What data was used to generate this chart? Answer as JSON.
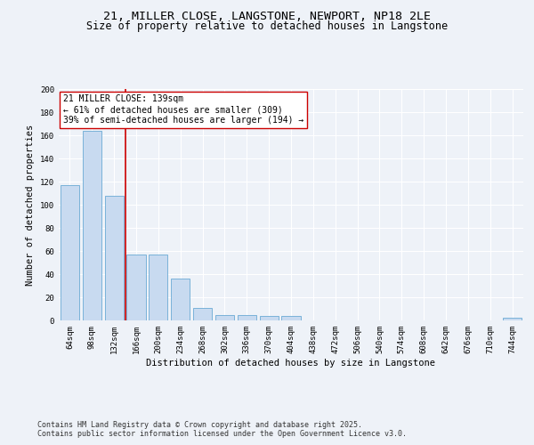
{
  "title_line1": "21, MILLER CLOSE, LANGSTONE, NEWPORT, NP18 2LE",
  "title_line2": "Size of property relative to detached houses in Langstone",
  "xlabel": "Distribution of detached houses by size in Langstone",
  "ylabel": "Number of detached properties",
  "categories": [
    "64sqm",
    "98sqm",
    "132sqm",
    "166sqm",
    "200sqm",
    "234sqm",
    "268sqm",
    "302sqm",
    "336sqm",
    "370sqm",
    "404sqm",
    "438sqm",
    "472sqm",
    "506sqm",
    "540sqm",
    "574sqm",
    "608sqm",
    "642sqm",
    "676sqm",
    "710sqm",
    "744sqm"
  ],
  "values": [
    117,
    164,
    108,
    57,
    57,
    36,
    11,
    5,
    5,
    4,
    4,
    0,
    0,
    0,
    0,
    0,
    0,
    0,
    0,
    0,
    2
  ],
  "bar_color": "#c8daf0",
  "bar_edge_color": "#6aaad4",
  "vline_x": 2.5,
  "vline_color": "#cc0000",
  "annotation_text": "21 MILLER CLOSE: 139sqm\n← 61% of detached houses are smaller (309)\n39% of semi-detached houses are larger (194) →",
  "annotation_box_color": "#ffffff",
  "annotation_box_edge": "#cc0000",
  "ylim": [
    0,
    200
  ],
  "yticks": [
    0,
    20,
    40,
    60,
    80,
    100,
    120,
    140,
    160,
    180,
    200
  ],
  "footer_line1": "Contains HM Land Registry data © Crown copyright and database right 2025.",
  "footer_line2": "Contains public sector information licensed under the Open Government Licence v3.0.",
  "bg_color": "#eef2f8",
  "plot_bg_color": "#eef2f8",
  "title_fontsize": 9.5,
  "subtitle_fontsize": 8.5,
  "axis_label_fontsize": 7.5,
  "tick_fontsize": 6.5,
  "annotation_fontsize": 7,
  "footer_fontsize": 6
}
